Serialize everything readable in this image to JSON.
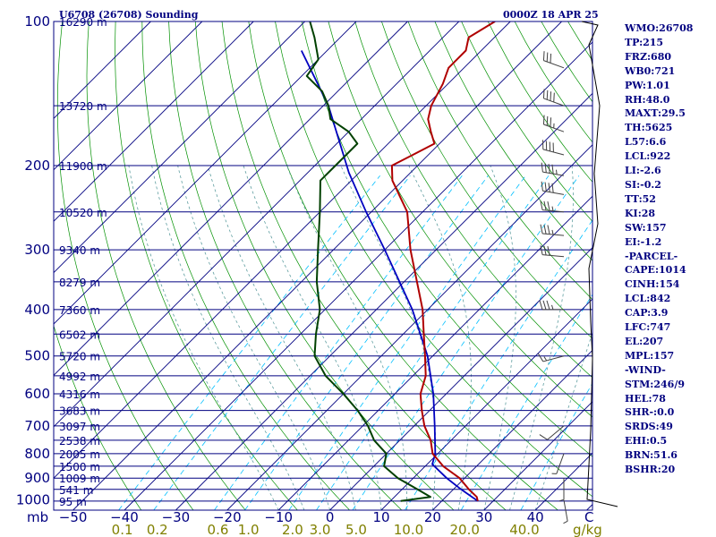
{
  "header": {
    "station": "U6708 (26708) Sounding",
    "time": "0000Z 18 APR 25"
  },
  "indices": [
    "WMO:26708",
    "TP:215",
    "FRZ:680",
    "WB0:721",
    "PW:1.01",
    "RH:48.0",
    "MAXT:29.5",
    "TH:5625",
    "L57:6.6",
    "LCL:922",
    "LI:-2.6",
    "SI:-0.2",
    "TT:52",
    "KI:28",
    "SW:157",
    "EI:-1.2",
    "-PARCEL-",
    "CAPE:1014",
    "CINH:154",
    "LCL:842",
    "CAP:3.9",
    "LFC:747",
    "EL:207",
    "MPL:157",
    "-WIND-",
    "STM:246/9",
    "HEL:78",
    "SHR-:0.0",
    "SRDS:49",
    "EHI:0.5",
    "BRN:51.6",
    "BSHR:20"
  ],
  "colors": {
    "isobar": "#000080",
    "isotherm": "#000080",
    "dry_adiabat": "#009000",
    "moist_adiabat": "#5f9ea0",
    "mixing_ratio": "#00bfff",
    "temperature": "#b00000",
    "dewpoint": "#004000",
    "parcel": "#0000c0",
    "wind_barb": "#404040",
    "hodograph": "#000000"
  },
  "chart_data": {
    "type": "skew-t",
    "x_axis_label": "C",
    "y_axis_label": "mb",
    "mixing_ratio_label": "g/kg",
    "pressure_levels": [
      100,
      200,
      300,
      400,
      500,
      600,
      700,
      800,
      900,
      1000
    ],
    "height_labels": [
      {
        "p": 1005,
        "h": "95 m"
      },
      {
        "p": 950,
        "h": "541 m"
      },
      {
        "p": 900,
        "h": "1009 m"
      },
      {
        "p": 850,
        "h": "1500 m"
      },
      {
        "p": 800,
        "h": "2005 m"
      },
      {
        "p": 750,
        "h": "2538 m"
      },
      {
        "p": 700,
        "h": "3097 m"
      },
      {
        "p": 650,
        "h": "3683 m"
      },
      {
        "p": 600,
        "h": "4316 m"
      },
      {
        "p": 550,
        "h": "4992 m"
      },
      {
        "p": 500,
        "h": "5720 m"
      },
      {
        "p": 450,
        "h": "6502 m"
      },
      {
        "p": 400,
        "h": "7360 m"
      },
      {
        "p": 350,
        "h": "8279 m"
      },
      {
        "p": 300,
        "h": "9340 m"
      },
      {
        "p": 250,
        "h": "10520 m"
      },
      {
        "p": 200,
        "h": "11900 m"
      },
      {
        "p": 150,
        "h": "13720 m"
      },
      {
        "p": 100,
        "h": "16290 m"
      }
    ],
    "temperature_ticks": [
      -50,
      -40,
      -30,
      -20,
      -10,
      0,
      10,
      20,
      30,
      40
    ],
    "mixing_ratio_ticks": [
      0.1,
      0.2,
      0.6,
      1.0,
      2.0,
      3.0,
      5.0,
      10.0,
      20.0,
      40.0
    ],
    "temperature": [
      [
        1005,
        27.0
      ],
      [
        985,
        26.0
      ],
      [
        950,
        23.0
      ],
      [
        900,
        19.0
      ],
      [
        850,
        13.5
      ],
      [
        800,
        9.0
      ],
      [
        750,
        6.0
      ],
      [
        700,
        2.0
      ],
      [
        650,
        -1.5
      ],
      [
        600,
        -5.0
      ],
      [
        550,
        -7.5
      ],
      [
        500,
        -11.5
      ],
      [
        450,
        -16.0
      ],
      [
        400,
        -21.0
      ],
      [
        350,
        -27.5
      ],
      [
        300,
        -35.0
      ],
      [
        250,
        -43.0
      ],
      [
        215,
        -52.0
      ],
      [
        200,
        -55.0
      ],
      [
        190,
        -53.0
      ],
      [
        180,
        -51.0
      ],
      [
        170,
        -54.0
      ],
      [
        160,
        -57.0
      ],
      [
        150,
        -59.0
      ],
      [
        135,
        -61.0
      ],
      [
        125,
        -63.0
      ],
      [
        115,
        -63.0
      ],
      [
        108,
        -65.0
      ],
      [
        100,
        -63.0
      ]
    ],
    "dewpoint": [
      [
        1005,
        12.0
      ],
      [
        985,
        17.0
      ],
      [
        950,
        13.0
      ],
      [
        900,
        7.0
      ],
      [
        850,
        2.0
      ],
      [
        800,
        0.0
      ],
      [
        750,
        -5.0
      ],
      [
        700,
        -9.0
      ],
      [
        650,
        -14.0
      ],
      [
        600,
        -20.0
      ],
      [
        550,
        -27.0
      ],
      [
        500,
        -33.0
      ],
      [
        450,
        -37.0
      ],
      [
        400,
        -41.0
      ],
      [
        350,
        -47.0
      ],
      [
        300,
        -53.0
      ],
      [
        250,
        -60.0
      ],
      [
        215,
        -66.0
      ],
      [
        200,
        -66.0
      ],
      [
        180,
        -66.0
      ],
      [
        170,
        -70.0
      ],
      [
        160,
        -76.0
      ],
      [
        150,
        -79.0
      ],
      [
        140,
        -83.0
      ],
      [
        130,
        -89.0
      ],
      [
        120,
        -90.0
      ],
      [
        108,
        -95.0
      ],
      [
        100,
        -99.0
      ]
    ],
    "parcel": [
      [
        1005,
        27.0
      ],
      [
        950,
        21.5
      ],
      [
        900,
        16.5
      ],
      [
        842,
        11.0
      ],
      [
        800,
        9.5
      ],
      [
        700,
        4.0
      ],
      [
        600,
        -2.5
      ],
      [
        500,
        -11.0
      ],
      [
        400,
        -23.0
      ],
      [
        300,
        -40.0
      ],
      [
        250,
        -51.0
      ],
      [
        207,
        -62.0
      ],
      [
        150,
        -79.0
      ],
      [
        115,
        -95.0
      ]
    ],
    "wind_barbs": [
      {
        "p": 125,
        "dir": 290,
        "spd": 30
      },
      {
        "p": 150,
        "dir": 290,
        "spd": 40
      },
      {
        "p": 170,
        "dir": 290,
        "spd": 35
      },
      {
        "p": 190,
        "dir": 285,
        "spd": 40
      },
      {
        "p": 210,
        "dir": 280,
        "spd": 45
      },
      {
        "p": 230,
        "dir": 280,
        "spd": 40
      },
      {
        "p": 250,
        "dir": 275,
        "spd": 35
      },
      {
        "p": 280,
        "dir": 275,
        "spd": 35
      },
      {
        "p": 310,
        "dir": 275,
        "spd": 30
      },
      {
        "p": 400,
        "dir": 270,
        "spd": 35
      },
      {
        "p": 500,
        "dir": 255,
        "spd": 15
      },
      {
        "p": 700,
        "dir": 230,
        "spd": 10
      },
      {
        "p": 800,
        "dir": 200,
        "spd": 5
      },
      {
        "p": 900,
        "dir": 180,
        "spd": 5
      },
      {
        "p": 1000,
        "dir": 170,
        "spd": 5
      }
    ]
  }
}
